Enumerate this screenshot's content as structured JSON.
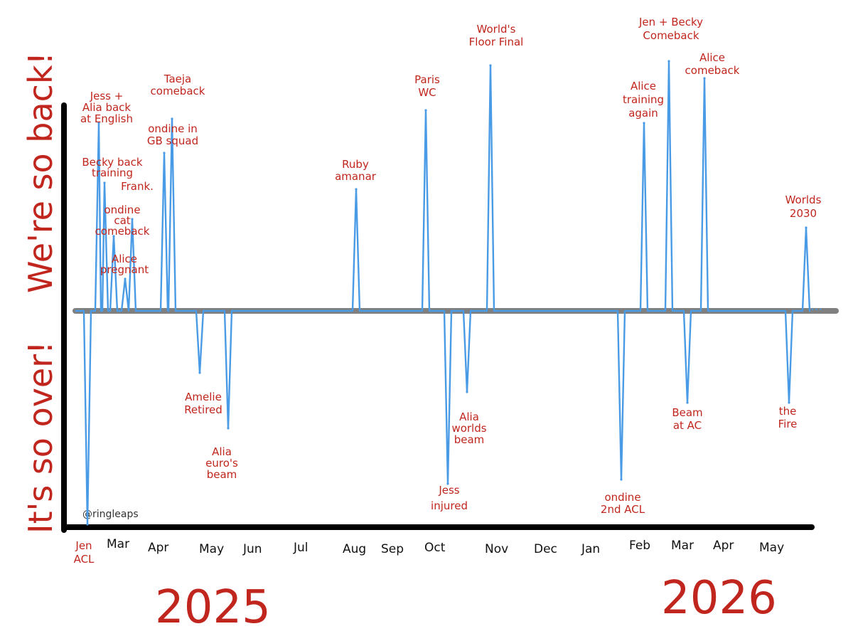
{
  "chart_data": {
    "type": "line",
    "ylabel_top": "We're so back!",
    "ylabel_bottom": "It's so over!",
    "credit": "@ringleaps",
    "ylim": [
      -1,
      1
    ],
    "x_months": [
      "Mar",
      "Apr",
      "May",
      "Jun",
      "Jul",
      "Aug",
      "Sep",
      "Oct",
      "Nov",
      "Dec",
      "Jan",
      "Feb",
      "Mar",
      "Apr",
      "May"
    ],
    "years": [
      "2025",
      "2026"
    ],
    "events": [
      {
        "label": [
          "Jen",
          "ACL"
        ],
        "value": -1.0
      },
      {
        "label": [
          "Jess +",
          "Alia back",
          "at English"
        ],
        "value": 0.88
      },
      {
        "label": [
          "Becky back",
          "training"
        ],
        "value": 0.6
      },
      {
        "label": [
          "ondine",
          "cat",
          "comeback"
        ],
        "value": 0.35
      },
      {
        "label": [
          "Alice",
          "pregnant"
        ],
        "value": 0.15
      },
      {
        "label": [
          "Frank."
        ],
        "value": 0.43
      },
      {
        "label": [
          "ondine in",
          "GB squad"
        ],
        "value": 0.74
      },
      {
        "label": [
          "Taeja",
          "comeback"
        ],
        "value": 0.9
      },
      {
        "label": [
          "Amelie",
          "Retired"
        ],
        "value": -0.29
      },
      {
        "label": [
          "Alia",
          "euro's",
          "beam"
        ],
        "value": -0.55
      },
      {
        "label": [
          "Ruby",
          "amanar"
        ],
        "value": 0.57
      },
      {
        "label": [
          "Paris",
          "WC"
        ],
        "value": 0.94
      },
      {
        "label": [
          "Jess",
          "injured"
        ],
        "value": -0.81
      },
      {
        "label": [
          "Alia",
          "worlds",
          "beam"
        ],
        "value": -0.38
      },
      {
        "label": [
          "World's",
          "Floor Final"
        ],
        "value": 1.15
      },
      {
        "label": [
          "ondine",
          "2nd ACL"
        ],
        "value": -0.79
      },
      {
        "label": [
          "Alice",
          "training",
          "again"
        ],
        "value": 0.88
      },
      {
        "label": [
          "Jen + Becky",
          "Comeback"
        ],
        "value": 1.17
      },
      {
        "label": [
          "Alice",
          "comeback"
        ],
        "value": 1.09
      },
      {
        "label": [
          "Beam",
          "at AC"
        ],
        "value": -0.43
      },
      {
        "label": [
          "the",
          "Fire"
        ],
        "value": -0.43
      },
      {
        "label": [
          "Worlds",
          "2030"
        ],
        "value": 0.39
      }
    ]
  }
}
